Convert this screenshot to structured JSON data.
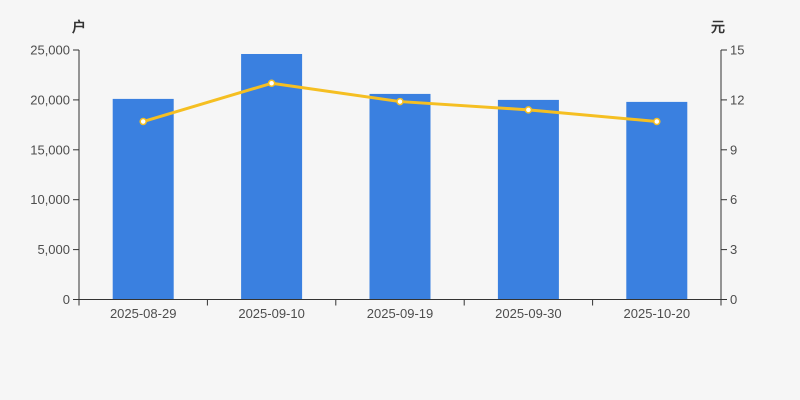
{
  "chart": {
    "left_axis": {
      "title": "户",
      "tick_values": [
        0,
        5000,
        10000,
        15000,
        20000,
        25000
      ],
      "tick_labels": [
        "0",
        "5,000",
        "10,000",
        "15,000",
        "20,000",
        "25,000"
      ]
    },
    "right_axis": {
      "title": "元",
      "tick_values": [
        0,
        3,
        6,
        9,
        12,
        15
      ],
      "tick_labels": [
        "0",
        "3",
        "6",
        "9",
        "12",
        "15"
      ]
    }
  },
  "chart_data": {
    "type": "bar",
    "categories": [
      "2025-08-29",
      "2025-09-10",
      "2025-09-19",
      "2025-09-30",
      "2025-10-20"
    ],
    "series": [
      {
        "name": "bar-series",
        "type": "bar",
        "y_axis": "left",
        "values": [
          20100,
          24600,
          20600,
          20000,
          19800
        ],
        "color": "#3a80e0"
      },
      {
        "name": "line-series",
        "type": "line",
        "y_axis": "right",
        "values": [
          10.7,
          13.0,
          11.9,
          11.4,
          10.7
        ],
        "color": "#f5bf22",
        "marker_fill": "#ffffff"
      }
    ],
    "left_ylim": [
      0,
      25000
    ],
    "right_ylim": [
      0,
      15
    ],
    "grid": false,
    "legend": null,
    "title": ""
  },
  "colors": {
    "background": "#f6f6f6",
    "axis_line": "#333333",
    "tick_label": "#4d4d4d",
    "bar": "#3a80e0",
    "line": "#f5bf22",
    "marker_fill": "#ffffff"
  }
}
